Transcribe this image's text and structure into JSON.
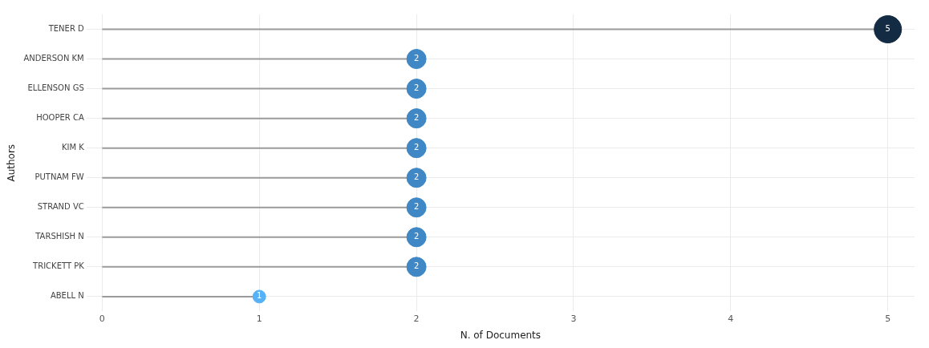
{
  "chart_data": {
    "type": "lollipop",
    "orientation": "horizontal",
    "xlabel": "N. of Documents",
    "ylabel": "Authors",
    "categories": [
      "TENER D",
      "ANDERSON KM",
      "ELLENSON GS",
      "HOOPER CA",
      "KIM K",
      "PUTNAM FW",
      "STRAND VC",
      "TARSHISH N",
      "TRICKETT PK",
      "ABELL N"
    ],
    "values": [
      5,
      2,
      2,
      2,
      2,
      2,
      2,
      2,
      2,
      1
    ],
    "sizes": [
      1,
      0.5,
      0.5,
      0.5,
      0.5,
      0.5,
      0.5,
      0.5,
      0.5,
      0.22
    ],
    "colors": [
      "#132b43",
      "#3f88c5",
      "#3f88c5",
      "#3f88c5",
      "#3f88c5",
      "#3f88c5",
      "#3f88c5",
      "#3f88c5",
      "#3f88c5",
      "#56b1f7"
    ],
    "xlim": [
      -0.1,
      5.17
    ],
    "xticks": [
      0,
      1,
      2,
      3,
      4,
      5
    ],
    "grid": true,
    "data_labels": true
  }
}
